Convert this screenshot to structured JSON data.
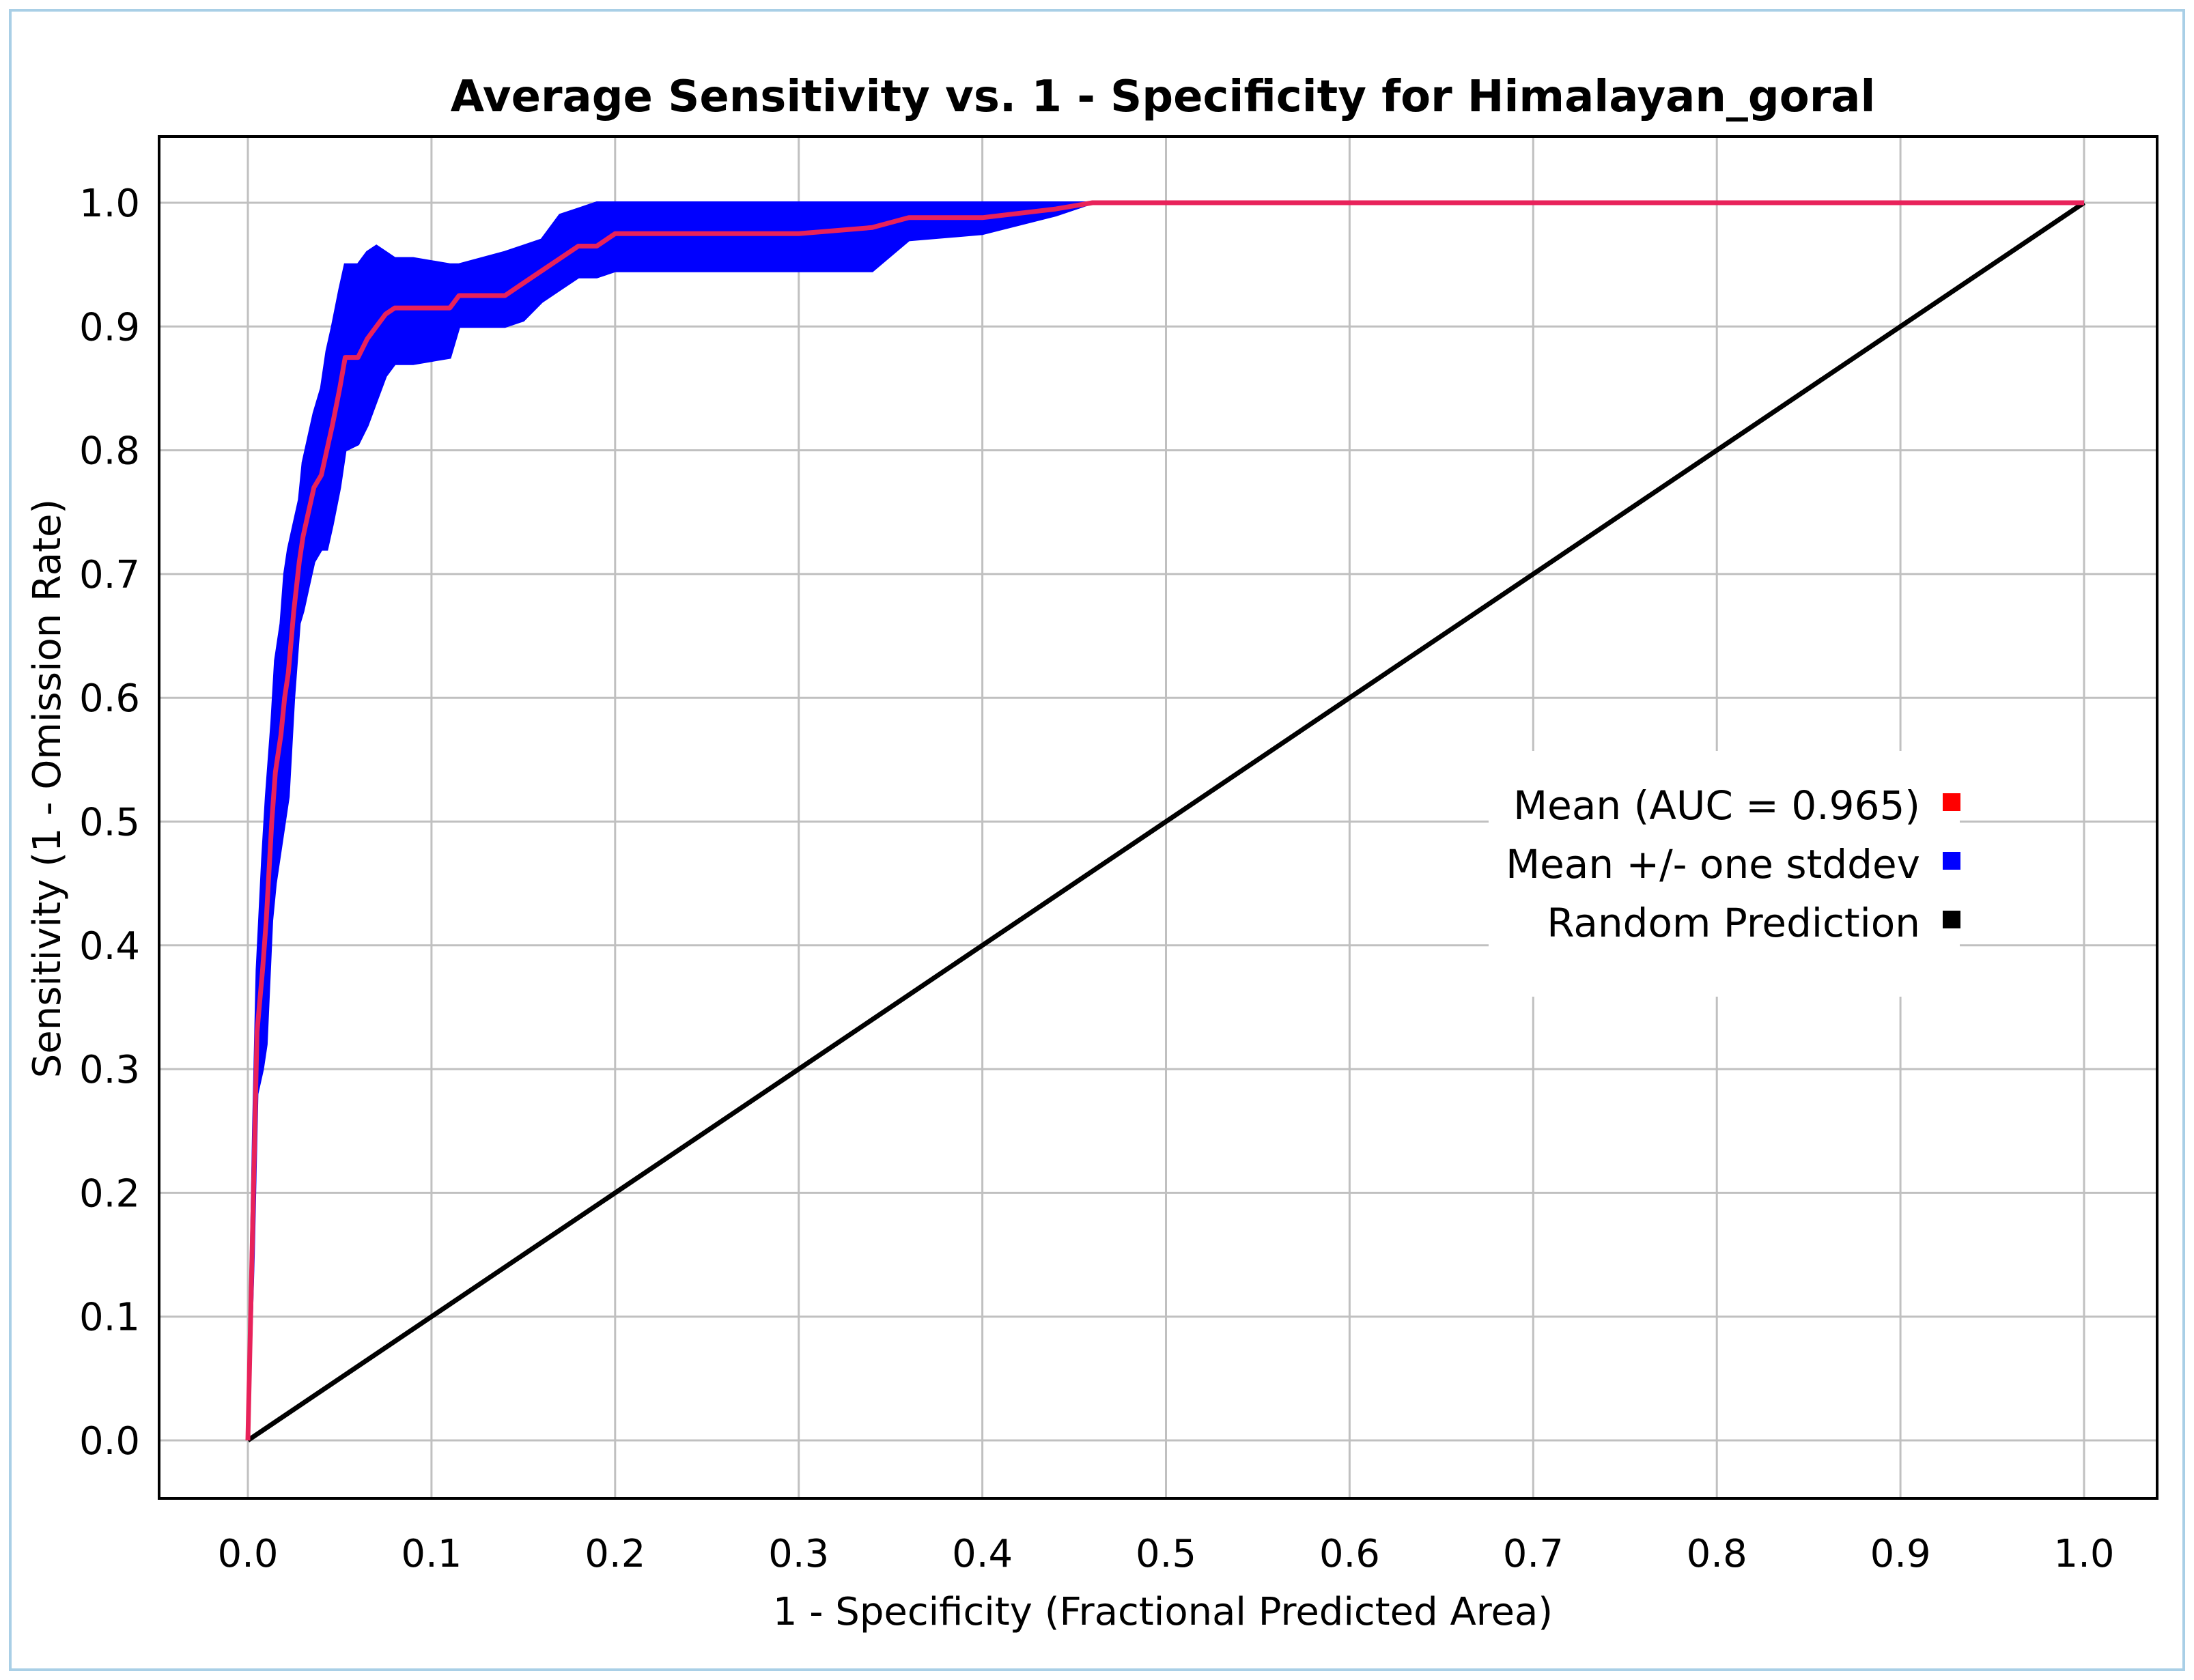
{
  "colors": {
    "outer_border": "#a9cfe6",
    "mean": "#ff0000",
    "mean_line": "#e8225a",
    "stddev": "#0000ff",
    "random": "#000000",
    "grid": "#c0c0c0"
  },
  "chart_data": {
    "type": "line",
    "title": "Average Sensitivity vs. 1 - Specificity for Himalayan_goral",
    "xlabel": "1 - Specificity (Fractional Predicted Area)",
    "ylabel": "Sensitivity (1 - Omission Rate)",
    "xlim": [
      0.0,
      1.0
    ],
    "ylim": [
      0.0,
      1.0
    ],
    "xticks": [
      "0.0",
      "0.1",
      "0.2",
      "0.3",
      "0.4",
      "0.5",
      "0.6",
      "0.7",
      "0.8",
      "0.9",
      "1.0"
    ],
    "yticks": [
      "0.0",
      "0.1",
      "0.2",
      "0.3",
      "0.4",
      "0.5",
      "0.6",
      "0.7",
      "0.8",
      "0.9",
      "1.0"
    ],
    "grid": true,
    "legend_position": "right",
    "legend": [
      {
        "label": "Mean (AUC = 0.965)",
        "color": "#ff0000"
      },
      {
        "label": "Mean +/- one stddev",
        "color": "#0000ff"
      },
      {
        "label": "Random Prediction",
        "color": "#000000"
      }
    ],
    "series": [
      {
        "name": "Mean (AUC = 0.965)",
        "x": [
          0.0,
          0.003,
          0.005,
          0.008,
          0.01,
          0.013,
          0.015,
          0.018,
          0.02,
          0.022,
          0.025,
          0.028,
          0.03,
          0.033,
          0.036,
          0.04,
          0.043,
          0.046,
          0.05,
          0.053,
          0.06,
          0.065,
          0.07,
          0.075,
          0.08,
          0.09,
          0.11,
          0.115,
          0.14,
          0.15,
          0.16,
          0.17,
          0.18,
          0.19,
          0.2,
          0.3,
          0.34,
          0.36,
          0.4,
          0.44,
          0.46,
          1.0
        ],
        "y": [
          0.0,
          0.2,
          0.33,
          0.38,
          0.42,
          0.5,
          0.54,
          0.57,
          0.6,
          0.62,
          0.67,
          0.71,
          0.73,
          0.75,
          0.77,
          0.78,
          0.8,
          0.82,
          0.85,
          0.875,
          0.875,
          0.89,
          0.9,
          0.91,
          0.915,
          0.915,
          0.915,
          0.925,
          0.925,
          0.935,
          0.945,
          0.955,
          0.965,
          0.965,
          0.975,
          0.975,
          0.98,
          0.988,
          0.988,
          0.995,
          1.0,
          1.0
        ]
      },
      {
        "name": "Mean +/- one stddev",
        "x": [
          0.0,
          0.003,
          0.005,
          0.008,
          0.01,
          0.013,
          0.015,
          0.018,
          0.02,
          0.022,
          0.025,
          0.028,
          0.03,
          0.033,
          0.036,
          0.04,
          0.043,
          0.046,
          0.05,
          0.053,
          0.06,
          0.065,
          0.07,
          0.075,
          0.08,
          0.09,
          0.11,
          0.115,
          0.14,
          0.15,
          0.16,
          0.17,
          0.18,
          0.19,
          0.2,
          0.3,
          0.34,
          0.36,
          0.4,
          0.44,
          0.46,
          1.0
        ],
        "upper": [
          0.0,
          0.25,
          0.38,
          0.47,
          0.52,
          0.58,
          0.63,
          0.66,
          0.7,
          0.72,
          0.74,
          0.76,
          0.79,
          0.81,
          0.83,
          0.85,
          0.88,
          0.9,
          0.93,
          0.95,
          0.95,
          0.96,
          0.965,
          0.96,
          0.955,
          0.955,
          0.95,
          0.95,
          0.96,
          0.965,
          0.97,
          0.99,
          0.995,
          1.0,
          1.0,
          1.0,
          1.0,
          1.0,
          1.0,
          1.0,
          1.0,
          1.0
        ],
        "lower": [
          0.0,
          0.15,
          0.28,
          0.3,
          0.32,
          0.42,
          0.45,
          0.48,
          0.5,
          0.52,
          0.6,
          0.66,
          0.67,
          0.69,
          0.71,
          0.72,
          0.72,
          0.74,
          0.77,
          0.8,
          0.805,
          0.82,
          0.84,
          0.86,
          0.87,
          0.87,
          0.875,
          0.9,
          0.9,
          0.905,
          0.92,
          0.93,
          0.94,
          0.94,
          0.945,
          0.945,
          0.945,
          0.97,
          0.975,
          0.99,
          1.0,
          1.0
        ]
      },
      {
        "name": "Random Prediction",
        "x": [
          0.0,
          1.0
        ],
        "y": [
          0.0,
          1.0
        ]
      }
    ]
  }
}
